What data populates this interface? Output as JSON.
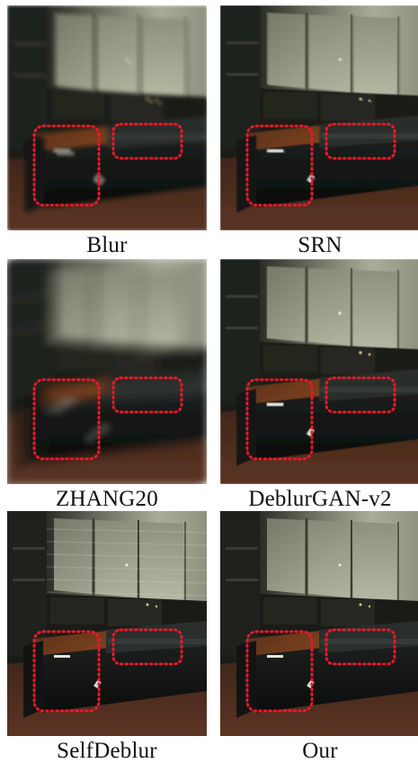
{
  "panels": [
    {
      "label": "Blur",
      "style": "blur"
    },
    {
      "label": "SRN",
      "style": "sharp"
    },
    {
      "label": "ZHANG20",
      "style": "heavy-blur"
    },
    {
      "label": "DeblurGAN-v2",
      "style": "sharp"
    },
    {
      "label": "SelfDeblur",
      "style": "ringing"
    },
    {
      "label": "Our",
      "style": "sharp"
    }
  ],
  "colors": {
    "highlight_box": "#e8192c",
    "background": "#ffffff"
  }
}
